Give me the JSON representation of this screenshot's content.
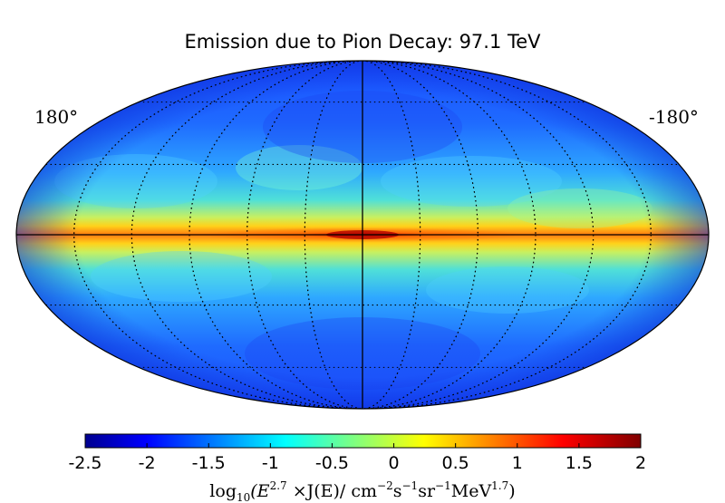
{
  "title": "Emission due to Pion Decay: 97.1 TeV",
  "longitude_labels": {
    "left": "180°",
    "right": "-180°"
  },
  "colorbar": {
    "ticks": [
      "-2.5",
      "-2",
      "-1.5",
      "-1",
      "-0.5",
      "0",
      "0.5",
      "1",
      "1.5",
      "2"
    ],
    "range": [
      -2.5,
      2
    ],
    "label": {
      "prefix": "log",
      "log_base": "10",
      "open": "(E",
      "e_exp": "2.7",
      "mid": " ×J(E)/ cm",
      "cm_exp": "−2",
      "s": "s",
      "s_exp": "−1",
      "sr": "sr",
      "sr_exp": "−1",
      "mev": "MeV",
      "mev_exp": "1.7",
      "close": ")"
    },
    "colormap": "jet"
  },
  "map": {
    "projection": "mollweide",
    "grid": "dotted",
    "axes": "solid"
  }
}
